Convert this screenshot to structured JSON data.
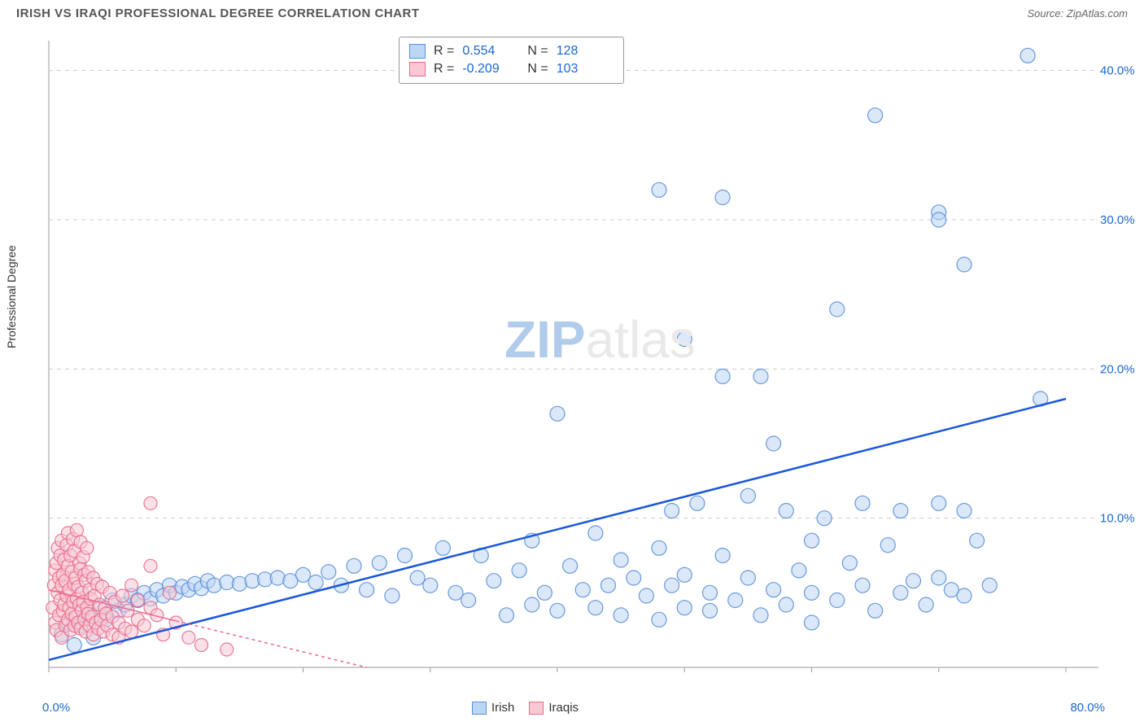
{
  "title": "IRISH VS IRAQI PROFESSIONAL DEGREE CORRELATION CHART",
  "source": "Source: ZipAtlas.com",
  "ylabel": "Professional Degree",
  "watermark": {
    "bold": "ZIP",
    "rest": "atlas"
  },
  "chart": {
    "type": "scatter",
    "background_color": "#ffffff",
    "grid_color": "#cccccc",
    "border_color": "#999999",
    "axis_text_color": "#1967d2",
    "x": {
      "min": 0,
      "max": 80,
      "ticks": [
        0,
        10,
        20,
        30,
        40,
        50,
        60,
        70,
        80
      ],
      "label_lo": "0.0%",
      "label_hi": "80.0%"
    },
    "y": {
      "min": 0,
      "max": 42,
      "ticks": [
        10,
        20,
        30,
        40
      ],
      "tick_labels": [
        "10.0%",
        "20.0%",
        "30.0%",
        "40.0%"
      ]
    },
    "series": [
      {
        "name": "Irish",
        "color_fill": "#bcd6f5",
        "color_stroke": "#5b8fd6",
        "swatch_fill": "#bcd6f5",
        "swatch_border": "#5b8fd6",
        "R": "0.554",
        "N": "128",
        "marker_radius": 9,
        "marker_opacity": 0.55,
        "trend": {
          "x1": 0,
          "y1": 0.5,
          "x2": 80,
          "y2": 18,
          "color": "#1a56db",
          "width": 2.5,
          "dash": "none"
        },
        "points": [
          [
            1,
            2.2
          ],
          [
            1.5,
            3
          ],
          [
            2,
            1.5
          ],
          [
            2.5,
            2.8
          ],
          [
            3,
            3.5
          ],
          [
            3.5,
            2
          ],
          [
            4,
            4
          ],
          [
            4.5,
            3.2
          ],
          [
            5,
            4.5
          ],
          [
            5.5,
            3.8
          ],
          [
            6,
            4.2
          ],
          [
            6.5,
            4.8
          ],
          [
            7,
            4.5
          ],
          [
            7.5,
            5
          ],
          [
            8,
            4.6
          ],
          [
            8.5,
            5.2
          ],
          [
            9,
            4.8
          ],
          [
            9.5,
            5.5
          ],
          [
            10,
            5
          ],
          [
            10.5,
            5.4
          ],
          [
            11,
            5.2
          ],
          [
            11.5,
            5.6
          ],
          [
            12,
            5.3
          ],
          [
            12.5,
            5.8
          ],
          [
            13,
            5.5
          ],
          [
            14,
            5.7
          ],
          [
            15,
            5.6
          ],
          [
            16,
            5.8
          ],
          [
            17,
            5.9
          ],
          [
            18,
            6
          ],
          [
            19,
            5.8
          ],
          [
            20,
            6.2
          ],
          [
            21,
            5.7
          ],
          [
            22,
            6.4
          ],
          [
            23,
            5.5
          ],
          [
            24,
            6.8
          ],
          [
            25,
            5.2
          ],
          [
            26,
            7
          ],
          [
            27,
            4.8
          ],
          [
            28,
            7.5
          ],
          [
            29,
            6
          ],
          [
            30,
            5.5
          ],
          [
            31,
            8
          ],
          [
            32,
            5
          ],
          [
            33,
            4.5
          ],
          [
            34,
            7.5
          ],
          [
            35,
            5.8
          ],
          [
            36,
            3.5
          ],
          [
            37,
            6.5
          ],
          [
            38,
            4.2
          ],
          [
            38,
            8.5
          ],
          [
            39,
            5
          ],
          [
            40,
            17
          ],
          [
            40,
            3.8
          ],
          [
            41,
            6.8
          ],
          [
            42,
            5.2
          ],
          [
            43,
            9
          ],
          [
            43,
            4
          ],
          [
            44,
            5.5
          ],
          [
            45,
            7.2
          ],
          [
            45,
            3.5
          ],
          [
            46,
            6
          ],
          [
            47,
            4.8
          ],
          [
            48,
            32
          ],
          [
            48,
            8
          ],
          [
            48,
            3.2
          ],
          [
            49,
            10.5
          ],
          [
            49,
            5.5
          ],
          [
            50,
            22
          ],
          [
            50,
            6.2
          ],
          [
            50,
            4
          ],
          [
            51,
            11
          ],
          [
            52,
            5
          ],
          [
            52,
            3.8
          ],
          [
            53,
            19.5
          ],
          [
            53,
            31.5
          ],
          [
            53,
            7.5
          ],
          [
            54,
            4.5
          ],
          [
            55,
            11.5
          ],
          [
            55,
            6
          ],
          [
            56,
            19.5
          ],
          [
            56,
            3.5
          ],
          [
            57,
            15
          ],
          [
            57,
            5.2
          ],
          [
            58,
            10.5
          ],
          [
            58,
            4.2
          ],
          [
            59,
            6.5
          ],
          [
            60,
            8.5
          ],
          [
            60,
            5
          ],
          [
            60,
            3
          ],
          [
            61,
            10
          ],
          [
            62,
            4.5
          ],
          [
            62,
            24
          ],
          [
            63,
            7
          ],
          [
            64,
            11
          ],
          [
            64,
            5.5
          ],
          [
            65,
            37
          ],
          [
            65,
            3.8
          ],
          [
            66,
            8.2
          ],
          [
            67,
            10.5
          ],
          [
            67,
            5
          ],
          [
            68,
            5.8
          ],
          [
            69,
            4.2
          ],
          [
            70,
            30.5
          ],
          [
            70,
            30
          ],
          [
            70,
            11
          ],
          [
            70,
            6
          ],
          [
            71,
            5.2
          ],
          [
            72,
            27
          ],
          [
            72,
            10.5
          ],
          [
            72,
            4.8
          ],
          [
            73,
            8.5
          ],
          [
            74,
            5.5
          ],
          [
            77,
            41
          ],
          [
            78,
            18
          ]
        ]
      },
      {
        "name": "Iraqis",
        "color_fill": "#f8c9d4",
        "color_stroke": "#e86a8a",
        "swatch_fill": "#f8c9d4",
        "swatch_border": "#e86a8a",
        "R": "-0.209",
        "N": "103",
        "marker_radius": 8,
        "marker_opacity": 0.55,
        "trend": {
          "x1": 0,
          "y1": 5.2,
          "x2": 25,
          "y2": 0,
          "color": "#e86a8a",
          "width": 1.5,
          "dash": "4,4",
          "solid_until_x": 10
        },
        "points": [
          [
            0.3,
            4
          ],
          [
            0.4,
            5.5
          ],
          [
            0.5,
            3
          ],
          [
            0.5,
            6.5
          ],
          [
            0.6,
            2.5
          ],
          [
            0.6,
            7
          ],
          [
            0.7,
            5
          ],
          [
            0.7,
            8
          ],
          [
            0.8,
            3.5
          ],
          [
            0.8,
            6
          ],
          [
            0.9,
            4.5
          ],
          [
            0.9,
            7.5
          ],
          [
            1,
            2
          ],
          [
            1,
            5.5
          ],
          [
            1,
            8.5
          ],
          [
            1.1,
            3.8
          ],
          [
            1.1,
            6.2
          ],
          [
            1.2,
            4.2
          ],
          [
            1.2,
            7.2
          ],
          [
            1.3,
            2.8
          ],
          [
            1.3,
            5.8
          ],
          [
            1.4,
            4.8
          ],
          [
            1.4,
            8.2
          ],
          [
            1.5,
            3.2
          ],
          [
            1.5,
            6.8
          ],
          [
            1.5,
            9
          ],
          [
            1.6,
            4
          ],
          [
            1.6,
            5.2
          ],
          [
            1.7,
            2.5
          ],
          [
            1.7,
            7.5
          ],
          [
            1.8,
            3.6
          ],
          [
            1.8,
            6.4
          ],
          [
            1.9,
            4.4
          ],
          [
            1.9,
            8.6
          ],
          [
            2,
            2.8
          ],
          [
            2,
            5.6
          ],
          [
            2,
            7.8
          ],
          [
            2.1,
            3.4
          ],
          [
            2.1,
            6
          ],
          [
            2.2,
            4.6
          ],
          [
            2.2,
            9.2
          ],
          [
            2.3,
            3
          ],
          [
            2.3,
            5.4
          ],
          [
            2.4,
            7
          ],
          [
            2.4,
            4.2
          ],
          [
            2.5,
            2.6
          ],
          [
            2.5,
            6.6
          ],
          [
            2.5,
            8.4
          ],
          [
            2.6,
            3.8
          ],
          [
            2.6,
            5
          ],
          [
            2.7,
            4.4
          ],
          [
            2.7,
            7.4
          ],
          [
            2.8,
            3.2
          ],
          [
            2.8,
            6.2
          ],
          [
            2.9,
            2.4
          ],
          [
            2.9,
            5.8
          ],
          [
            3,
            4
          ],
          [
            3,
            8
          ],
          [
            3.1,
            3.6
          ],
          [
            3.1,
            6.4
          ],
          [
            3.2,
            2.8
          ],
          [
            3.2,
            5.2
          ],
          [
            3.3,
            4.6
          ],
          [
            3.4,
            3.4
          ],
          [
            3.5,
            6
          ],
          [
            3.5,
            2.2
          ],
          [
            3.6,
            4.8
          ],
          [
            3.7,
            3
          ],
          [
            3.8,
            5.6
          ],
          [
            3.9,
            2.6
          ],
          [
            4,
            4.2
          ],
          [
            4.1,
            3.2
          ],
          [
            4.2,
            5.4
          ],
          [
            4.3,
            2.4
          ],
          [
            4.4,
            4
          ],
          [
            4.5,
            3.6
          ],
          [
            4.6,
            2.8
          ],
          [
            4.8,
            5
          ],
          [
            5,
            3.4
          ],
          [
            5,
            2.2
          ],
          [
            5.2,
            4.4
          ],
          [
            5.5,
            3
          ],
          [
            5.5,
            2
          ],
          [
            5.8,
            4.8
          ],
          [
            6,
            2.6
          ],
          [
            6.2,
            3.8
          ],
          [
            6.5,
            5.5
          ],
          [
            6.5,
            2.4
          ],
          [
            7,
            3.2
          ],
          [
            7,
            4.5
          ],
          [
            7.5,
            2.8
          ],
          [
            8,
            6.8
          ],
          [
            8,
            4
          ],
          [
            8,
            11
          ],
          [
            8.5,
            3.5
          ],
          [
            9,
            2.2
          ],
          [
            9.5,
            5
          ],
          [
            10,
            3
          ],
          [
            11,
            2
          ],
          [
            12,
            1.5
          ],
          [
            14,
            1.2
          ]
        ]
      }
    ],
    "legend_bottom": [
      {
        "label": "Irish",
        "fill": "#bcd6f5",
        "border": "#5b8fd6"
      },
      {
        "label": "Iraqis",
        "fill": "#f8c9d4",
        "border": "#e86a8a"
      }
    ]
  }
}
